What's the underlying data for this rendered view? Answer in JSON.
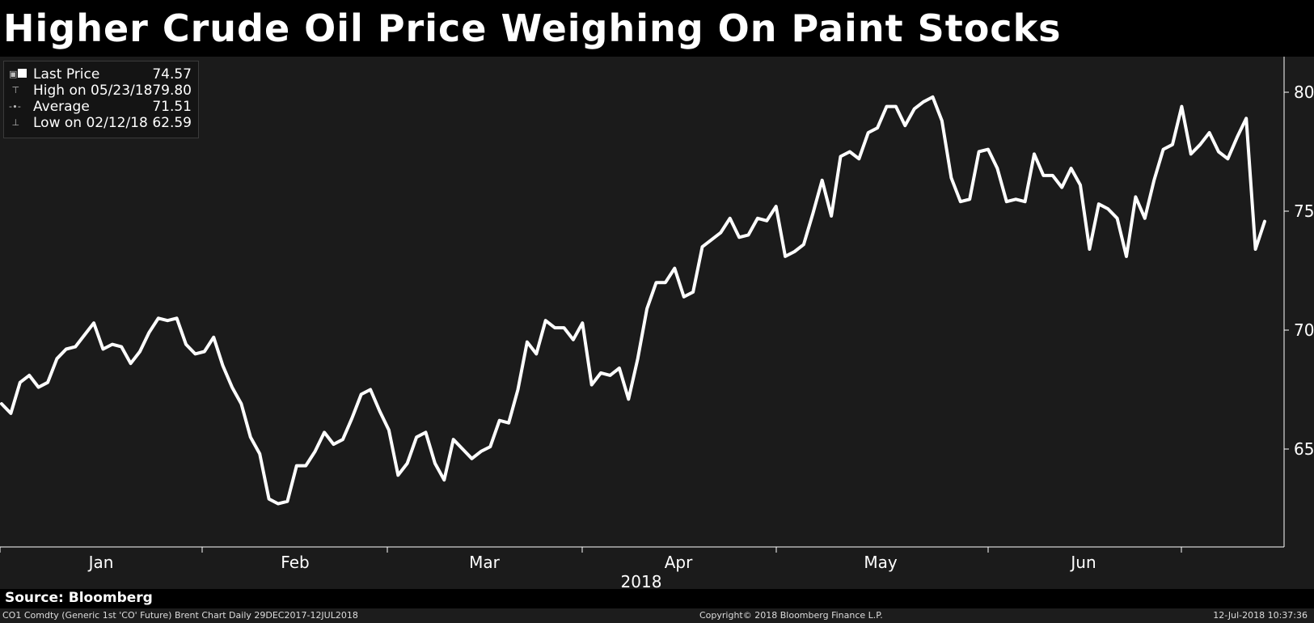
{
  "title": "Higher Crude Oil Price Weighing On Paint Stocks",
  "legend": {
    "items": [
      {
        "label": "Last Price",
        "value": "74.57"
      },
      {
        "label": "High on 05/23/18",
        "value": "79.80"
      },
      {
        "label": "Average",
        "value": "71.51"
      },
      {
        "label": "Low on 02/12/18",
        "value": "62.59"
      }
    ]
  },
  "source": "Source: Bloomberg",
  "footer": {
    "left": "CO1 Comdty (Generic 1st 'CO' Future) Brent Chart  Daily 29DEC2017-12JUL2018",
    "center": "Copyright© 2018 Bloomberg Finance L.P.",
    "right": "12-Jul-2018 10:37:36"
  },
  "colors": {
    "background": "#1b1b1b",
    "line": "#ffffff",
    "page": "#000000"
  },
  "chart_data": {
    "type": "line",
    "series": [
      {
        "name": "Last Price",
        "values": [
          66.9,
          66.5,
          67.8,
          68.1,
          67.6,
          67.8,
          68.8,
          69.2,
          69.3,
          69.8,
          70.3,
          69.2,
          69.4,
          69.3,
          68.6,
          69.1,
          69.9,
          70.5,
          70.4,
          70.5,
          69.4,
          69.0,
          69.1,
          69.7,
          68.5,
          67.6,
          66.9,
          65.5,
          64.8,
          62.9,
          62.7,
          62.8,
          64.3,
          64.3,
          64.9,
          65.7,
          65.2,
          65.4,
          66.3,
          67.3,
          67.5,
          66.6,
          65.8,
          63.9,
          64.4,
          65.5,
          65.7,
          64.4,
          63.7,
          65.4,
          65.0,
          64.6,
          64.9,
          65.1,
          66.2,
          66.1,
          67.5,
          69.5,
          69.0,
          70.4,
          70.1,
          70.1,
          69.6,
          70.3,
          67.7,
          68.2,
          68.1,
          68.4,
          67.1,
          68.8,
          70.9,
          72.0,
          72.0,
          72.6,
          71.4,
          71.6,
          73.5,
          73.8,
          74.1,
          74.7,
          73.9,
          74.0,
          74.7,
          74.6,
          75.2,
          73.1,
          73.3,
          73.6,
          74.9,
          76.3,
          74.8,
          77.3,
          77.5,
          77.2,
          78.3,
          78.5,
          79.4,
          79.4,
          78.6,
          79.3,
          79.6,
          79.8,
          78.8,
          76.4,
          75.4,
          75.5,
          77.5,
          77.6,
          76.8,
          75.4,
          75.5,
          75.4,
          77.4,
          76.5,
          76.5,
          76.0,
          76.8,
          76.1,
          73.4,
          75.3,
          75.1,
          74.7,
          73.1,
          75.6,
          74.7,
          76.3,
          77.6,
          77.8,
          79.4,
          77.4,
          77.8,
          78.3,
          77.5,
          77.2,
          78.1,
          78.9,
          73.4,
          74.57
        ]
      }
    ],
    "x_range": [
      "29DEC2017",
      "12JUL2018"
    ],
    "month_labels": [
      "Jan",
      "Feb",
      "Mar",
      "Apr",
      "May",
      "Jun"
    ],
    "year_label": "2018",
    "y_ticks": [
      65,
      70,
      75,
      80
    ],
    "ylim": [
      61.5,
      81.5
    ],
    "y_axis_side": "right",
    "grid": false,
    "legend_position": "top-left"
  }
}
